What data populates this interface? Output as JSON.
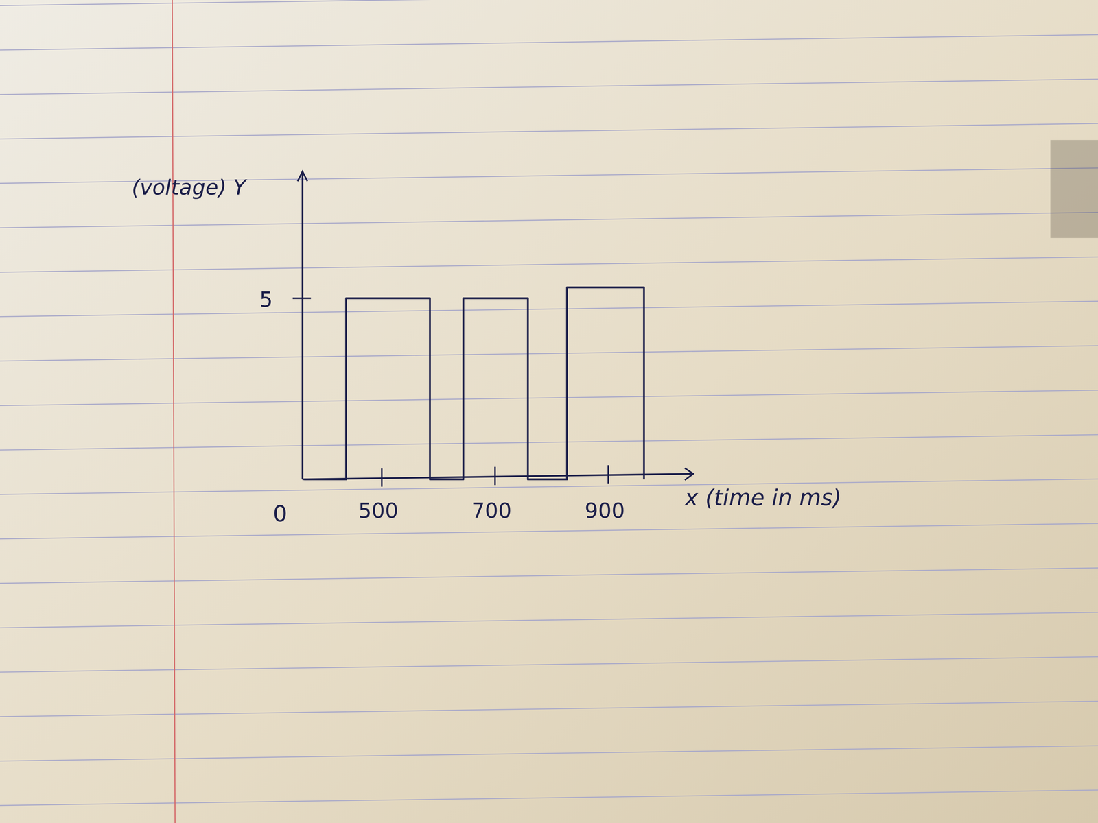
{
  "chart_data": {
    "type": "line",
    "x_label": "x (time in ms)",
    "y_label": "(voltage) Y",
    "origin_label": "0",
    "x": [
      363,
      437,
      437,
      585,
      585,
      644,
      644,
      758,
      758,
      827,
      827,
      963,
      963
    ],
    "values": [
      0,
      0,
      5,
      5,
      0,
      0,
      5,
      5,
      0,
      0,
      5.3,
      5.3,
      0
    ],
    "color": "#1c1f4a",
    "xlim": [
      360,
      1050
    ],
    "xticks": [
      500,
      700,
      900
    ],
    "ylim": [
      0,
      8.5
    ],
    "yticks": [
      5
    ],
    "grid": false
  }
}
